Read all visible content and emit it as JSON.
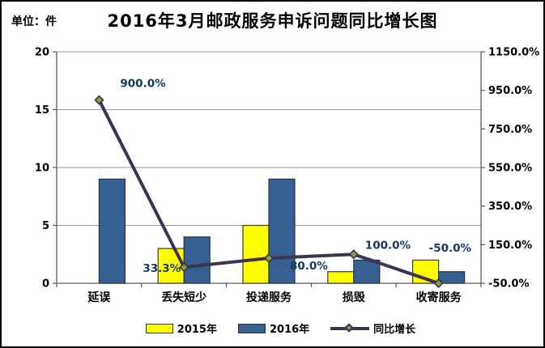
{
  "title": "2016年3月邮政服务申诉问题同比增长图",
  "unit_label": "单位：件",
  "legend": {
    "items": [
      {
        "label": "2015年",
        "type": "bar",
        "color": "#FFFF00"
      },
      {
        "label": "2016年",
        "type": "bar",
        "color": "#366092"
      },
      {
        "label": "同比增长",
        "type": "line",
        "color": "#3F3151",
        "marker_fill": "#84A23C"
      }
    ]
  },
  "chart_data": {
    "type": "combo-bar-line",
    "title": "2016年3月邮政服务申诉问题同比增长图",
    "unit": "件",
    "categories": [
      "延误",
      "丢失短少",
      "投递服务",
      "损毁",
      "收寄服务"
    ],
    "series": [
      {
        "name": "2015年",
        "type": "bar",
        "axis": "left",
        "values": [
          0,
          3,
          5,
          1,
          2
        ],
        "color": "#FFFF00",
        "border": "#3a3a3a"
      },
      {
        "name": "2016年",
        "type": "bar",
        "axis": "left",
        "values": [
          9,
          4,
          9,
          2,
          1
        ],
        "color": "#366092",
        "border": "#26323d"
      },
      {
        "name": "同比增长",
        "type": "line",
        "axis": "right",
        "values_pct": [
          900,
          33.3,
          80,
          100,
          -50
        ],
        "point_labels": [
          "900.0%",
          "33.3%",
          "80.0%",
          "100.0%",
          "-50.0%"
        ],
        "color": "#3F3151",
        "marker": {
          "shape": "diamond",
          "fill": "#84A23C",
          "stroke": "#3F3151"
        }
      }
    ],
    "left_axis": {
      "min": 0,
      "max": 20,
      "ticks": [
        0,
        5,
        10,
        15,
        20
      ],
      "tick_labels": [
        "0",
        "5",
        "10",
        "15",
        "20"
      ]
    },
    "right_axis": {
      "min": -50,
      "max": 1150,
      "ticks": [
        -50,
        150,
        350,
        550,
        750,
        950,
        1150
      ],
      "tick_labels": [
        "-50.0%",
        "150.0%",
        "350.0%",
        "550.0%",
        "750.0%",
        "950.0%",
        "1150.0%"
      ]
    },
    "grid": true,
    "gridline_color": "#9a9a9a",
    "axis_line_color": "#595959",
    "data_label_color": "#17375E",
    "legend_position": "bottom"
  }
}
